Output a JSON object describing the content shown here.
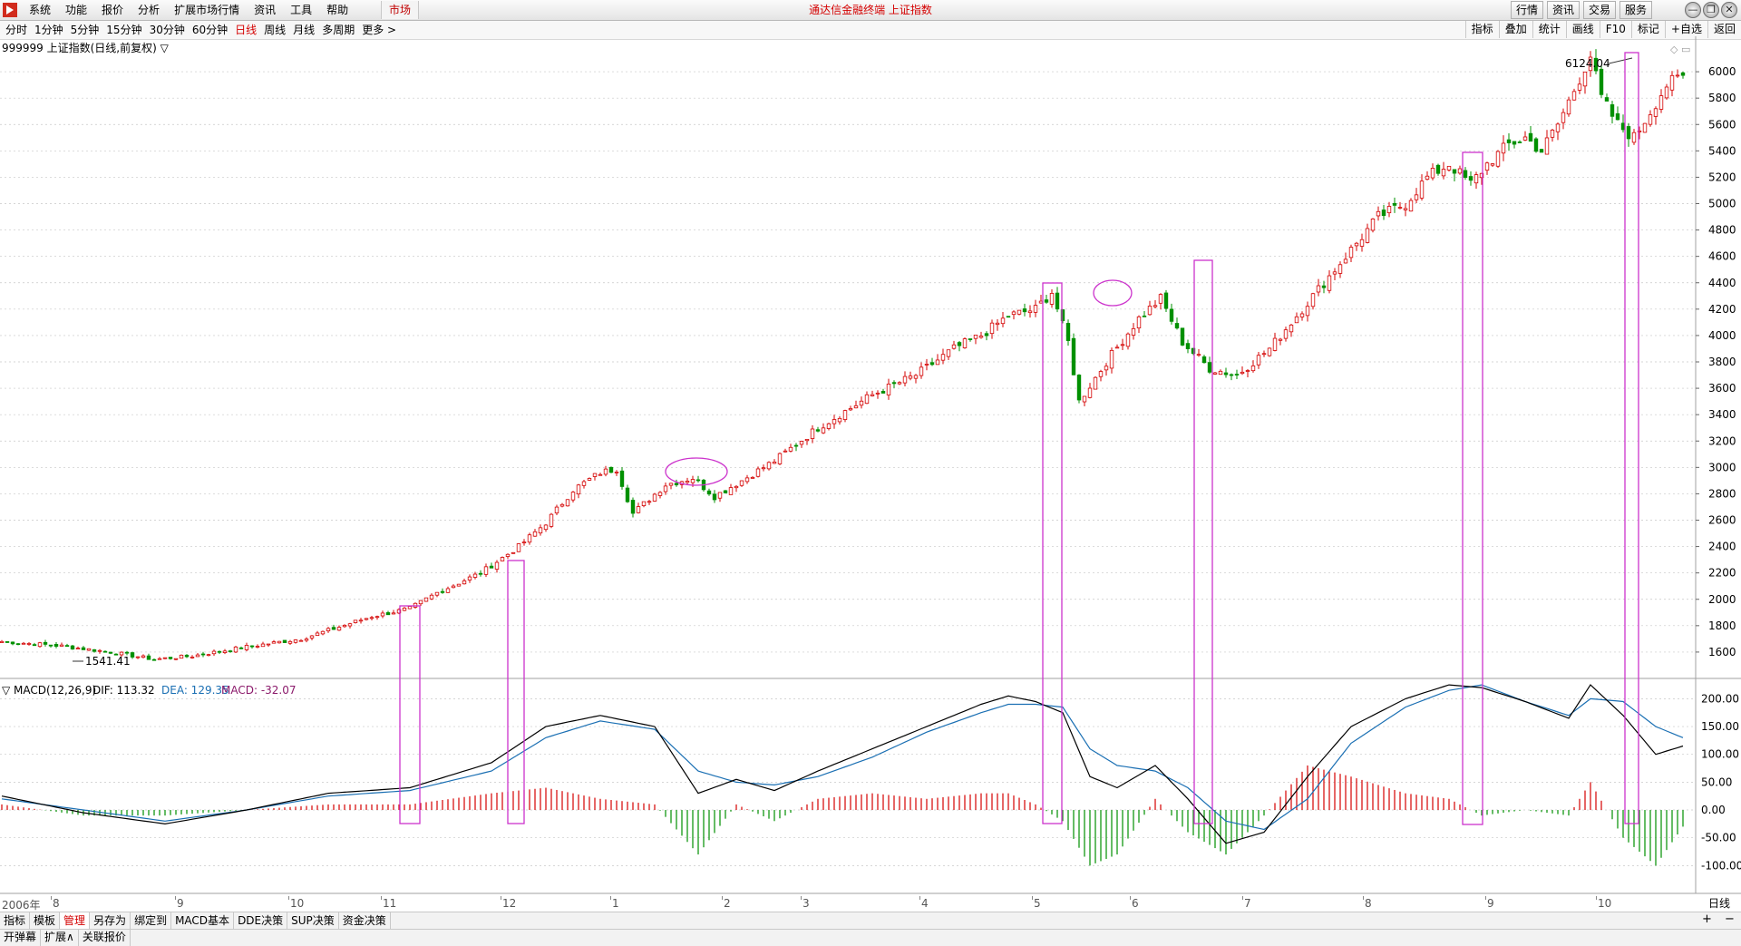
{
  "app": {
    "title": "通达信金融终端  上证指数",
    "menus": [
      "系统",
      "功能",
      "报价",
      "分析",
      "扩展市场行情",
      "资讯",
      "工具",
      "帮助"
    ],
    "market_tab": "市场",
    "right_buttons": [
      "行情",
      "资讯",
      "交易",
      "服务"
    ],
    "window_buttons": [
      "—",
      "❐",
      "✕"
    ]
  },
  "periods": [
    "分时",
    "1分钟",
    "5分钟",
    "15分钟",
    "30分钟",
    "60分钟",
    "日线",
    "周线",
    "月线",
    "多周期",
    "更多 >"
  ],
  "selected_period": "日线",
  "tools": [
    "指标",
    "叠加",
    "统计",
    "画线",
    "F10",
    "标记",
    "+自选",
    "返回"
  ],
  "chart_header": "999999 上证指数(日线,前复权) ▽",
  "annotations": {
    "high": "6124.04",
    "low": "1541.41"
  },
  "macd": {
    "label": "▽ MACD(12,26,9)",
    "dif": "DIF: 113.32",
    "dea": "DEA: 129.35",
    "macd": "MACD: -32.07",
    "colors": {
      "dif": "#000000",
      "dea": "#1a6fb3",
      "macd": "#8b1a6b"
    }
  },
  "colors": {
    "up": "#d40000",
    "down": "#009000",
    "highlight": "#cc33cc",
    "grid": "#c8c8c8"
  },
  "date_axis": {
    "start": "2006年",
    "months": [
      "8",
      "9",
      "10",
      "11",
      "12",
      "1",
      "2",
      "3",
      "4",
      "5",
      "6",
      "7",
      "8",
      "9",
      "10"
    ],
    "period_label": "日线"
  },
  "tabs": [
    "指标",
    "模板",
    "管理",
    "另存为",
    "绑定到",
    "MACD基本",
    "DDE决策",
    "SUP决策",
    "资金决策"
  ],
  "selected_tab": "管理",
  "tabs2": [
    "开弹幕",
    "扩展∧",
    "关联报价"
  ],
  "zoom": [
    "+",
    "−"
  ],
  "chart_data": {
    "type": "candlestick",
    "title": "999999 上证指数(日线,前复权)",
    "y_ticks": [
      1600,
      1800,
      2000,
      2200,
      2400,
      2600,
      2800,
      3000,
      3200,
      3400,
      3600,
      3800,
      4000,
      4200,
      4400,
      4600,
      4800,
      5000,
      5200,
      5400,
      5600,
      5800,
      6000
    ],
    "ylim": [
      1400,
      6200
    ],
    "x_axis_months": [
      "2006-08",
      "2006-09",
      "2006-10",
      "2006-11",
      "2006-12",
      "2007-01",
      "2007-02",
      "2007-03",
      "2007-04",
      "2007-05",
      "2007-06",
      "2007-07",
      "2007-08",
      "2007-09",
      "2007-10"
    ],
    "price_path": [
      [
        0,
        1680
      ],
      [
        10,
        1650
      ],
      [
        20,
        1600
      ],
      [
        28,
        1545
      ],
      [
        35,
        1570
      ],
      [
        45,
        1640
      ],
      [
        55,
        1700
      ],
      [
        62,
        1790
      ],
      [
        68,
        1870
      ],
      [
        75,
        1930
      ],
      [
        80,
        2050
      ],
      [
        88,
        2200
      ],
      [
        95,
        2400
      ],
      [
        100,
        2580
      ],
      [
        105,
        2830
      ],
      [
        110,
        2960
      ],
      [
        113,
        2990
      ],
      [
        116,
        2650
      ],
      [
        122,
        2870
      ],
      [
        127,
        2920
      ],
      [
        131,
        2780
      ],
      [
        136,
        2900
      ],
      [
        142,
        3050
      ],
      [
        150,
        3300
      ],
      [
        160,
        3550
      ],
      [
        168,
        3700
      ],
      [
        175,
        3900
      ],
      [
        180,
        4000
      ],
      [
        185,
        4150
      ],
      [
        190,
        4200
      ],
      [
        193,
        4330
      ],
      [
        196,
        3950
      ],
      [
        198,
        3500
      ],
      [
        203,
        3800
      ],
      [
        209,
        4130
      ],
      [
        213,
        4280
      ],
      [
        217,
        3950
      ],
      [
        222,
        3750
      ],
      [
        227,
        3700
      ],
      [
        233,
        3900
      ],
      [
        238,
        4150
      ],
      [
        243,
        4400
      ],
      [
        248,
        4650
      ],
      [
        253,
        4900
      ],
      [
        258,
        5000
      ],
      [
        262,
        5200
      ],
      [
        266,
        5300
      ],
      [
        270,
        5150
      ],
      [
        273,
        5300
      ],
      [
        277,
        5450
      ],
      [
        280,
        5500
      ],
      [
        283,
        5400
      ],
      [
        286,
        5600
      ],
      [
        290,
        5950
      ],
      [
        292,
        6124
      ],
      [
        294,
        5800
      ],
      [
        297,
        5600
      ],
      [
        300,
        5500
      ],
      [
        303,
        5700
      ],
      [
        306,
        5900
      ],
      [
        309,
        5960
      ]
    ],
    "annotations": [
      {
        "label": "6124.04",
        "value": 6124.04
      },
      {
        "label": "1541.41",
        "value": 1541.41
      }
    ],
    "macd_ticks": [
      200,
      150,
      100,
      50,
      0,
      -50,
      -100
    ],
    "macd_ylim": [
      -150,
      230
    ],
    "macd_series": [
      {
        "name": "DIF",
        "values_path": [
          [
            0,
            25
          ],
          [
            15,
            -5
          ],
          [
            30,
            -25
          ],
          [
            45,
            0
          ],
          [
            60,
            30
          ],
          [
            75,
            40
          ],
          [
            90,
            85
          ],
          [
            100,
            150
          ],
          [
            110,
            170
          ],
          [
            120,
            150
          ],
          [
            128,
            30
          ],
          [
            135,
            55
          ],
          [
            142,
            35
          ],
          [
            150,
            70
          ],
          [
            160,
            110
          ],
          [
            170,
            150
          ],
          [
            180,
            190
          ],
          [
            185,
            205
          ],
          [
            190,
            195
          ],
          [
            195,
            175
          ],
          [
            200,
            60
          ],
          [
            205,
            40
          ],
          [
            212,
            80
          ],
          [
            218,
            20
          ],
          [
            225,
            -60
          ],
          [
            232,
            -40
          ],
          [
            240,
            60
          ],
          [
            248,
            150
          ],
          [
            258,
            200
          ],
          [
            266,
            225
          ],
          [
            272,
            220
          ],
          [
            280,
            195
          ],
          [
            288,
            165
          ],
          [
            292,
            225
          ],
          [
            298,
            170
          ],
          [
            304,
            100
          ],
          [
            309,
            115
          ]
        ]
      },
      {
        "name": "DEA",
        "values_path": [
          [
            0,
            20
          ],
          [
            15,
            0
          ],
          [
            30,
            -20
          ],
          [
            45,
            0
          ],
          [
            60,
            25
          ],
          [
            75,
            35
          ],
          [
            90,
            70
          ],
          [
            100,
            130
          ],
          [
            110,
            160
          ],
          [
            120,
            145
          ],
          [
            128,
            70
          ],
          [
            135,
            50
          ],
          [
            142,
            45
          ],
          [
            150,
            60
          ],
          [
            160,
            95
          ],
          [
            170,
            140
          ],
          [
            180,
            175
          ],
          [
            185,
            190
          ],
          [
            190,
            190
          ],
          [
            195,
            185
          ],
          [
            200,
            110
          ],
          [
            205,
            80
          ],
          [
            212,
            70
          ],
          [
            218,
            40
          ],
          [
            225,
            -20
          ],
          [
            232,
            -35
          ],
          [
            240,
            20
          ],
          [
            248,
            120
          ],
          [
            258,
            185
          ],
          [
            266,
            215
          ],
          [
            272,
            225
          ],
          [
            280,
            195
          ],
          [
            288,
            170
          ],
          [
            292,
            200
          ],
          [
            298,
            195
          ],
          [
            304,
            150
          ],
          [
            309,
            130
          ]
        ]
      }
    ]
  }
}
